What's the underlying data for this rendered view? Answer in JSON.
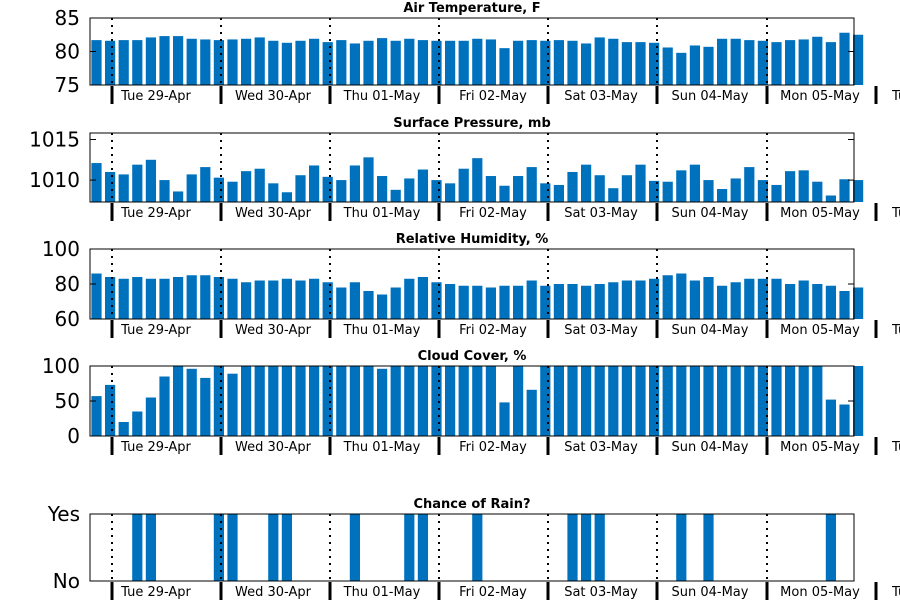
{
  "chart_data": [
    {
      "type": "bar",
      "title": "Air Temperature, F",
      "ylim": [
        75,
        85
      ],
      "yticks": [
        75,
        80,
        85
      ],
      "ytick_labels": [
        "75",
        "80",
        "85"
      ],
      "grid": false,
      "color": "#0072bd",
      "x_tick_labels": [
        "Tue 29-Apr",
        "Wed 30-Apr",
        "Thu 01-May",
        "Fri 02-May",
        "Sat 03-May",
        "Sun 04-May",
        "Mon 05-May",
        "Tu"
      ],
      "values": [
        81.7,
        81.6,
        81.7,
        81.7,
        82.1,
        82.3,
        82.3,
        81.9,
        81.8,
        81.7,
        81.8,
        81.9,
        82.1,
        81.6,
        81.3,
        81.6,
        81.9,
        81.4,
        81.7,
        81.2,
        81.6,
        82.0,
        81.6,
        81.9,
        81.7,
        81.6,
        81.6,
        81.6,
        81.9,
        81.8,
        80.5,
        81.6,
        81.7,
        81.6,
        81.7,
        81.6,
        81.2,
        82.1,
        81.9,
        81.4,
        81.4,
        81.3,
        80.6,
        79.8,
        80.9,
        80.7,
        81.9,
        81.9,
        81.7,
        81.6,
        81.4,
        81.7,
        81.8,
        82.2,
        81.4,
        82.8,
        82.5
      ]
    },
    {
      "type": "bar",
      "title": "Surface Pressure, mb",
      "ylim": [
        1007.3,
        1015.8
      ],
      "yticks": [
        1010,
        1015
      ],
      "ytick_labels": [
        "1010",
        "1015"
      ],
      "grid": false,
      "color": "#0072bd",
      "x_tick_labels": [
        "Tue 29-Apr",
        "Wed 30-Apr",
        "Thu 01-May",
        "Fri 02-May",
        "Sat 03-May",
        "Sun 04-May",
        "Mon 05-May",
        "Tu"
      ],
      "values": [
        1012.1,
        1011.0,
        1010.7,
        1011.9,
        1012.5,
        1010.0,
        1008.6,
        1010.7,
        1011.6,
        1010.3,
        1009.8,
        1011.1,
        1011.4,
        1009.6,
        1008.5,
        1010.6,
        1011.8,
        1010.4,
        1010.0,
        1011.8,
        1012.8,
        1010.5,
        1008.8,
        1010.2,
        1011.3,
        1010.0,
        1009.6,
        1011.4,
        1012.7,
        1010.5,
        1009.3,
        1010.5,
        1011.6,
        1009.6,
        1009.4,
        1011.0,
        1011.9,
        1010.6,
        1009.0,
        1010.6,
        1011.9,
        1009.9,
        1009.8,
        1011.2,
        1011.9,
        1010.0,
        1008.9,
        1010.2,
        1011.6,
        1010.0,
        1009.4,
        1011.1,
        1011.2,
        1009.8,
        1008.1,
        1010.1,
        1010.0
      ]
    },
    {
      "type": "bar",
      "title": "Relative Humidity, %",
      "ylim": [
        60,
        100
      ],
      "yticks": [
        60,
        80,
        100
      ],
      "ytick_labels": [
        "60",
        "80",
        "100"
      ],
      "grid": false,
      "color": "#0072bd",
      "x_tick_labels": [
        "Tue 29-Apr",
        "Wed 30-Apr",
        "Thu 01-May",
        "Fri 02-May",
        "Sat 03-May",
        "Sun 04-May",
        "Mon 05-May",
        "Tu"
      ],
      "values": [
        86,
        84,
        83,
        84,
        83,
        83,
        84,
        85,
        85,
        84,
        83,
        81,
        82,
        82,
        83,
        82,
        83,
        81,
        78,
        81,
        76,
        74,
        78,
        83,
        84,
        81,
        80,
        79,
        79,
        78,
        79,
        79,
        82,
        79,
        80,
        80,
        79,
        80,
        81,
        82,
        82,
        83,
        85,
        86,
        82,
        84,
        79,
        81,
        83,
        83,
        83,
        80,
        82,
        80,
        79,
        76,
        78
      ]
    },
    {
      "type": "bar",
      "title": "Cloud Cover, %",
      "ylim": [
        0,
        100
      ],
      "yticks": [
        0,
        50,
        100
      ],
      "ytick_labels": [
        "0",
        "50",
        "100"
      ],
      "grid": false,
      "color": "#0072bd",
      "x_tick_labels": [
        "Tue 29-Apr",
        "Wed 30-Apr",
        "Thu 01-May",
        "Fri 02-May",
        "Sat 03-May",
        "Sun 04-May",
        "Mon 05-May",
        "Tu"
      ],
      "values": [
        57,
        73,
        20,
        35,
        55,
        85,
        100,
        96,
        83,
        100,
        89,
        100,
        100,
        100,
        100,
        100,
        100,
        100,
        100,
        100,
        100,
        96,
        100,
        100,
        100,
        100,
        100,
        100,
        100,
        100,
        48,
        100,
        66,
        100,
        100,
        100,
        100,
        100,
        100,
        100,
        100,
        100,
        100,
        100,
        100,
        100,
        100,
        100,
        100,
        100,
        100,
        100,
        100,
        100,
        52,
        45,
        100
      ]
    },
    {
      "type": "bar",
      "title": "Chance of Rain?",
      "ylim": [
        0,
        1
      ],
      "yticks": [
        0,
        1
      ],
      "ytick_labels": [
        "No",
        "Yes"
      ],
      "grid": false,
      "color": "#0072bd",
      "x_tick_labels": [
        "Tue 29-Apr",
        "Wed 30-Apr",
        "Thu 01-May",
        "Fri 02-May",
        "Sat 03-May",
        "Sun 04-May",
        "Mon 05-May",
        "Tu"
      ],
      "values": [
        0,
        0,
        0,
        1,
        1,
        0,
        0,
        0,
        0,
        1,
        1,
        0,
        0,
        1,
        1,
        0,
        0,
        0,
        0,
        1,
        0,
        0,
        0,
        1,
        1,
        0,
        0,
        0,
        1,
        0,
        0,
        0,
        0,
        0,
        0,
        1,
        1,
        1,
        0,
        0,
        0,
        0,
        0,
        1,
        0,
        1,
        0,
        0,
        0,
        0,
        0,
        0,
        0,
        0,
        1,
        0,
        0
      ]
    }
  ]
}
